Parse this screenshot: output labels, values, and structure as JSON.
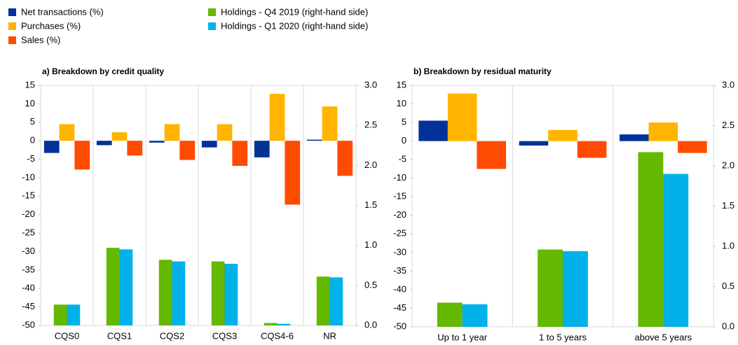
{
  "chart_data": [
    {
      "type": "bar",
      "title": "a) Breakdown by credit quality",
      "categories": [
        "CQS0",
        "CQS1",
        "CQS2",
        "CQS3",
        "CQS4-6",
        "NR"
      ],
      "series": [
        {
          "name": "Net transactions (%)",
          "color": "#003299",
          "values": [
            -3.3,
            -1.2,
            -0.5,
            -1.8,
            -4.5,
            0.3
          ]
        },
        {
          "name": "Purchases (%)",
          "color": "#ffb400",
          "values": [
            4.5,
            2.3,
            4.5,
            4.5,
            12.7,
            9.3
          ]
        },
        {
          "name": "Sales (%)",
          "color": "#ff4b00",
          "values": [
            -7.8,
            -4.0,
            -5.2,
            -6.8,
            -17.3,
            -9.5
          ]
        },
        {
          "name": "Holdings - Q4 2019 (right-hand side)",
          "color": "#65b800",
          "axis": "y2",
          "values": [
            0.26,
            0.97,
            0.82,
            0.8,
            0.03,
            0.61
          ]
        },
        {
          "name": "Holdings - Q1 2020 (right-hand side)",
          "color": "#00b1ea",
          "axis": "y2",
          "values": [
            0.26,
            0.95,
            0.8,
            0.77,
            0.02,
            0.6
          ]
        }
      ],
      "ylim": [
        -50,
        15
      ],
      "yticks": [
        -50,
        -45,
        -40,
        -35,
        -30,
        -25,
        -20,
        -15,
        -10,
        -5,
        0,
        5,
        10,
        15
      ],
      "y2lim": [
        0,
        3
      ],
      "y2ticks": [
        {
          "value": 0,
          "label": "0.0"
        },
        0.5,
        {
          "value": 1,
          "label": "1.0"
        },
        1.5,
        {
          "value": 2,
          "label": "2.0"
        },
        2.5,
        {
          "value": 3,
          "label": "3.0"
        }
      ]
    },
    {
      "type": "bar",
      "title": "b) Breakdown by residual maturity",
      "categories": [
        "Up to 1 year",
        "1 to 5 years",
        "above 5 years"
      ],
      "series": [
        {
          "color": "#003299",
          "values": [
            5.5,
            -1.2,
            1.8
          ]
        },
        {
          "color": "#ffb400",
          "values": [
            12.8,
            3.0,
            5.0
          ]
        },
        {
          "color": "#ff4b00",
          "values": [
            -7.5,
            -4.5,
            -3.2
          ]
        },
        {
          "color": "#65b800",
          "axis": "y2",
          "values": [
            0.3,
            0.96,
            2.17
          ]
        },
        {
          "color": "#00b1ea",
          "axis": "y2",
          "values": [
            0.28,
            0.94,
            1.9
          ]
        }
      ],
      "ylim": [
        -50,
        15
      ],
      "yticks": [
        -50,
        -45,
        -40,
        -35,
        -30,
        -25,
        -20,
        -15,
        -10,
        -5,
        0,
        5,
        10,
        15
      ],
      "y2lim": [
        0,
        3
      ],
      "y2ticks": [
        {
          "value": 0,
          "label": "0.0"
        },
        0.5,
        {
          "value": 1,
          "label": "1.0"
        },
        1.5,
        {
          "value": 2,
          "label": "2.0"
        },
        2.5,
        {
          "value": 3,
          "label": "3.0"
        }
      ]
    }
  ]
}
